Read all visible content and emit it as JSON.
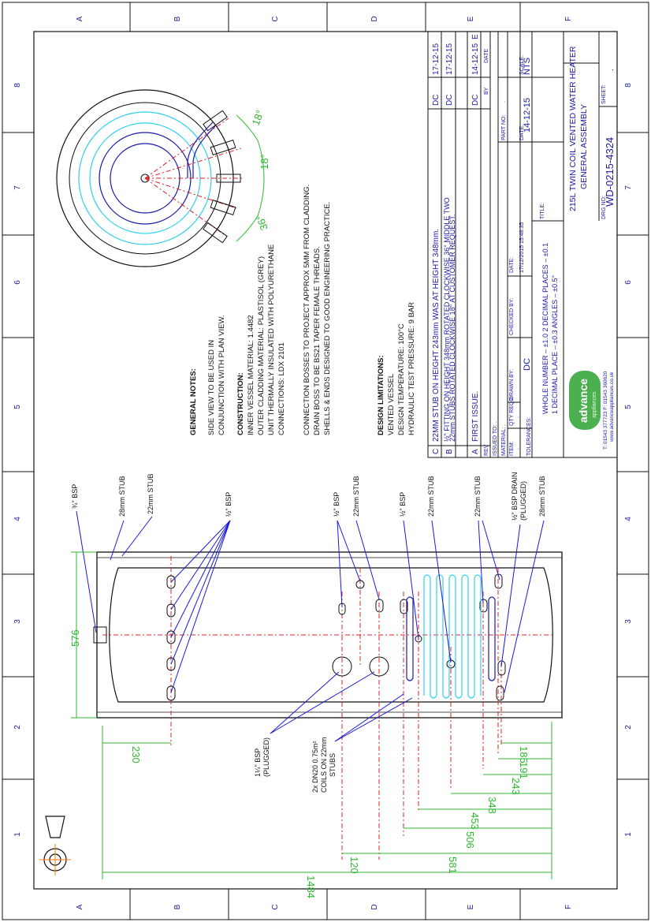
{
  "border": {
    "cols": [
      "1",
      "2",
      "3",
      "4",
      "5",
      "6",
      "7",
      "8"
    ],
    "rows": [
      "A",
      "B",
      "C",
      "D",
      "E",
      "F"
    ]
  },
  "callouts": {
    "bsp_3_4": "¾\" BSP",
    "stub_28_top": "28mm STUB",
    "stub_22_a": "22mm STUB",
    "bsp_half_a": "½\" BSP",
    "bsp_half_b": "½\" BSP",
    "stub_22_b": "22mm STUB",
    "bsp_half_c": "½\" BSP",
    "stub_22_c": "22mm STUB",
    "stub_22_d": "22mm STUB",
    "drain_1": "½\" BSP DRAIN",
    "drain_2": "(PLUGGED)",
    "stub_28_bottom": "28mm STUB",
    "bsp_1_4_a": "1¼\" BSP",
    "bsp_1_4_b": "(PLUGGED)",
    "coils_1": "2x DN20 0.75m²",
    "coils_2": "COILS ON 22mm",
    "coils_3": "STUBS"
  },
  "dimensions": {
    "d576": "576",
    "d230": "230",
    "d185": "185",
    "d191": "191",
    "d243": "243",
    "d348": "348",
    "d453": "453",
    "d506": "506",
    "d581": "581",
    "d120": "120",
    "d1484": "1484"
  },
  "plan_angles": {
    "a18a": "18°",
    "a18b": "18°",
    "a36": "36°"
  },
  "notes": {
    "general_title": "GENERAL NOTES:",
    "general_1": "SIDE VIEW TO BE USED IN",
    "general_2": "CONJUNCTION WITH PLAN VIEW.",
    "construction_title": "CONSTRUCTION:",
    "construction_1": "INNER VESSEL MATERIAL: 1.4482",
    "construction_2": "OUTER CLADDING MATERIAL: PLASTISOL (GREY)",
    "construction_3": "UNIT THERMALLY INSULATED WITH POLYURETHANE",
    "construction_4": "CONNECTIONS: LDX 2101",
    "conn_1": "CONNECTION BOSSES TO PROJECT APPROX 5MM FROM CLADDING.",
    "conn_2": "DRAIN BOSS TO BE BS21 TAPER FEMALE THREADS.",
    "conn_3": "SHELLS & ENDS DESIGNED TO GOOD ENGINEERING PRACTICE.",
    "design_title": "DESIGN LIMITATIONS:",
    "design_1": "VENTED VESSEL",
    "design_2": "DESIGN TEMPERATURE: 100°C",
    "design_3": "HYDRAULIC TEST PRESSURE: 9 BAR"
  },
  "revisions": [
    {
      "rev": "C",
      "desc": "22MM STUB ON HEIGHT 243mm WAS AT HEIGHT 348mm.",
      "desc2": "",
      "by": "DC",
      "date": "17-12-15"
    },
    {
      "rev": "B",
      "desc": "½\" FITTING ON HEIGHT 348mm ROTATED CLOCKWISE 36° MIDDLE TWO",
      "desc2": "22mm STUBS ROTATED CLOCKWISE 18° AT CUSTOMER REQUEST.",
      "by": "DC",
      "date": "17-12-15"
    },
    {
      "rev": "A",
      "desc": "FIRST ISSUE.",
      "desc2": "",
      "by": "DC",
      "date": "14-12-15"
    }
  ],
  "rev_headers": {
    "rev": "REV",
    "by": "BY",
    "date": "DATE",
    "e": "E"
  },
  "title_block": {
    "issued_to": "ISSUED TO:",
    "issued_to_val": ".",
    "material": "MATERIAL:",
    "material_val": ".",
    "part_no": "PART NO:",
    "part_no_val": ".",
    "item": "ITEM:",
    "item_val": ".",
    "qty_reqd": "QTY REQD",
    "qty_val": ".",
    "drawn_by": "DRAWN BY:",
    "drawn_by_val": "DC",
    "checked_by": "CHECKED BY:",
    "date": "DATE:",
    "date_val": "17/12/2015 15:48:35",
    "date2": "DATE:",
    "date2_val": "14-12-15",
    "scale": "SCALE:",
    "scale_val": "NTS",
    "tolerances": "TOLERANCES:",
    "tol_1": "WHOLE  NUMBER  –  ±1.0     2  DECIMAL  PLACES  –  ±0.1",
    "tol_2": "1  DECIMAL  PLACE  –  ±0.3    ANGLES  –  ±0.5°",
    "logo_1": "advance",
    "logo_2": "appliances",
    "contact_1": "T: 01543 377723   F: 01543 360620",
    "contact_2": "www.advanceappliances.co.uk",
    "title_label": "TITLE:",
    "title_1": "215L TWIN COIL VENTED WATER HEATER",
    "title_2": "GENERAL ASSEMBLY",
    "drg_no_label": "DRG NO:",
    "drg_no": "WD-0215-4324",
    "sheet_label": "SHEET:",
    "sheet_val": "."
  },
  "colors": {
    "dimension": "#2db82d",
    "leader": "#1a1adc",
    "centreline": "#e02020",
    "coil": "#2fd0f0",
    "logo_green": "#4caf50"
  }
}
